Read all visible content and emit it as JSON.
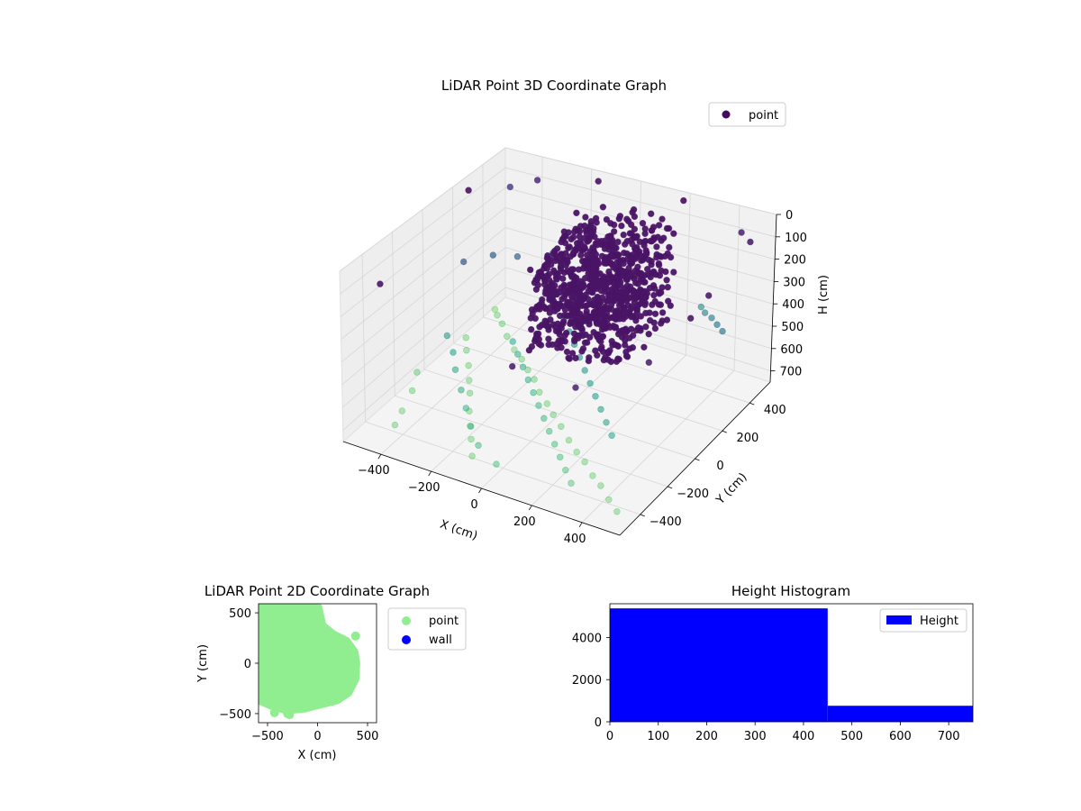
{
  "chart_data": [
    {
      "type": "scatter",
      "projection": "3d",
      "title": "LiDAR Point 3D Coordinate Graph",
      "xlabel": "X (cm)",
      "ylabel": "Y (cm)",
      "zlabel": "H (cm)",
      "xticks": [
        "−400",
        "−200",
        "0",
        "200",
        "400"
      ],
      "yticks": [
        "−400",
        "−200",
        "0",
        "200",
        "400"
      ],
      "zticks": [
        "0",
        "100",
        "200",
        "300",
        "400",
        "500",
        "600",
        "700"
      ],
      "xlim": [
        -550,
        550
      ],
      "ylim": [
        -550,
        550
      ],
      "zlim": [
        0,
        750
      ],
      "z_inverted": true,
      "legend": {
        "placement": "top-right",
        "entries": [
          "point"
        ]
      },
      "legend_color": "#440d5c",
      "colormap": "viridis",
      "grid": true,
      "dense_cluster": {
        "x_range": [
          -120,
          250
        ],
        "y_range": [
          -50,
          400
        ],
        "h_range": [
          0,
          450
        ],
        "color": "#4a1466"
      },
      "series": [
        {
          "name": "point",
          "points": [
            [
              -520,
              430,
              720
            ],
            [
              -480,
              380,
              700
            ],
            [
              -430,
              330,
              690
            ],
            [
              -380,
              280,
              700
            ],
            [
              -320,
              230,
              710
            ],
            [
              -260,
              180,
              700
            ],
            [
              -200,
              120,
              690
            ],
            [
              -150,
              80,
              690
            ],
            [
              -100,
              30,
              700
            ],
            [
              -40,
              -20,
              700
            ],
            [
              20,
              -80,
              690
            ],
            [
              80,
              -130,
              690
            ],
            [
              140,
              -180,
              700
            ],
            [
              200,
              -230,
              700
            ],
            [
              260,
              -280,
              690
            ],
            [
              320,
              -330,
              700
            ],
            [
              380,
              -380,
              690
            ],
            [
              440,
              -430,
              700
            ],
            [
              500,
              -480,
              700
            ],
            [
              -500,
              200,
              700
            ],
            [
              -450,
              120,
              690
            ],
            [
              -400,
              50,
              700
            ],
            [
              -350,
              -30,
              700
            ],
            [
              -300,
              -110,
              690
            ],
            [
              -250,
              -200,
              700
            ],
            [
              -200,
              -280,
              700
            ],
            [
              -150,
              -360,
              690
            ],
            [
              -100,
              -440,
              700
            ],
            [
              -520,
              -100,
              680
            ],
            [
              -480,
              -200,
              690
            ],
            [
              -450,
              -320,
              700
            ],
            [
              -420,
              -420,
              690
            ],
            [
              300,
              480,
              450
            ],
            [
              350,
              420,
              420
            ],
            [
              400,
              380,
              400
            ],
            [
              450,
              330,
              380
            ],
            [
              500,
              280,
              360
            ],
            [
              -300,
              460,
              380
            ],
            [
              -250,
              420,
              360
            ],
            [
              -200,
              380,
              340
            ],
            [
              -350,
              300,
              300
            ],
            [
              -420,
              250,
              280
            ],
            [
              -480,
              150,
              260
            ],
            [
              -440,
              -30,
              500
            ],
            [
              -380,
              -90,
              520
            ],
            [
              -330,
              -160,
              540
            ],
            [
              -260,
              -240,
              560
            ],
            [
              -200,
              -310,
              580
            ],
            [
              -140,
              -380,
              600
            ],
            [
              -70,
              -450,
              620
            ],
            [
              30,
              -500,
              640
            ],
            [
              -500,
              500,
              150
            ],
            [
              -400,
              520,
              100
            ],
            [
              450,
              500,
              80
            ],
            [
              520,
              440,
              60
            ],
            [
              540,
              100,
              50
            ],
            [
              550,
              -50,
              40
            ],
            [
              -550,
              300,
              30
            ],
            [
              -550,
              -300,
              40
            ],
            [
              200,
              520,
              20
            ],
            [
              -150,
              520,
              30
            ],
            [
              100,
              -520,
              60
            ],
            [
              350,
              -520,
              80
            ],
            [
              520,
              -300,
              70
            ],
            [
              -200,
              300,
              420
            ],
            [
              -150,
              250,
              430
            ],
            [
              -100,
              200,
              450
            ],
            [
              -50,
              150,
              460
            ],
            [
              0,
              100,
              470
            ],
            [
              50,
              50,
              480
            ],
            [
              100,
              0,
              490
            ],
            [
              150,
              -50,
              500
            ],
            [
              200,
              -100,
              510
            ],
            [
              250,
              -150,
              520
            ],
            [
              300,
              -200,
              530
            ],
            [
              350,
              -250,
              540
            ],
            [
              -250,
              100,
              550
            ],
            [
              -200,
              50,
              560
            ],
            [
              -150,
              0,
              570
            ],
            [
              -100,
              -50,
              580
            ],
            [
              -50,
              -100,
              590
            ],
            [
              0,
              -150,
              600
            ],
            [
              50,
              -200,
              610
            ],
            [
              100,
              -250,
              620
            ],
            [
              150,
              -300,
              630
            ],
            [
              200,
              -350,
              640
            ],
            [
              250,
              -400,
              650
            ],
            [
              300,
              -450,
              660
            ]
          ]
        }
      ]
    },
    {
      "type": "scatter",
      "title": "LiDAR Point 2D Coordinate Graph",
      "xlabel": "X (cm)",
      "ylabel": "Y (cm)",
      "xticks": [
        -500,
        0,
        500
      ],
      "yticks": [
        -500,
        0,
        500
      ],
      "xlim": [
        -590,
        590
      ],
      "ylim": [
        -590,
        590
      ],
      "legend": {
        "placement": "outside-right",
        "entries": [
          "point",
          "wall"
        ]
      },
      "colors": {
        "point": "#90ee90",
        "wall": "#0000ff"
      },
      "series": [
        {
          "name": "point",
          "region": {
            "x_range": [
              -590,
              400
            ],
            "y_range": [
              -520,
              590
            ]
          },
          "outliers": [
            [
              -430,
              -490
            ],
            [
              -280,
              -510
            ],
            [
              380,
              270
            ],
            [
              -300,
              -500
            ]
          ]
        },
        {
          "name": "wall",
          "points": []
        }
      ]
    },
    {
      "type": "bar",
      "title": "Height Histogram",
      "xticks": [
        0,
        100,
        200,
        300,
        400,
        500,
        600,
        700
      ],
      "yticks": [
        0,
        2000,
        4000
      ],
      "xlim": [
        0,
        750
      ],
      "ylim": [
        0,
        5600
      ],
      "legend": {
        "placement": "top-right",
        "entries": [
          "Height"
        ]
      },
      "color": "#0000ff",
      "bins": [
        [
          0,
          450
        ],
        [
          450,
          750
        ]
      ],
      "series": [
        {
          "name": "Height",
          "values": [
            5380,
            760
          ]
        }
      ]
    }
  ]
}
